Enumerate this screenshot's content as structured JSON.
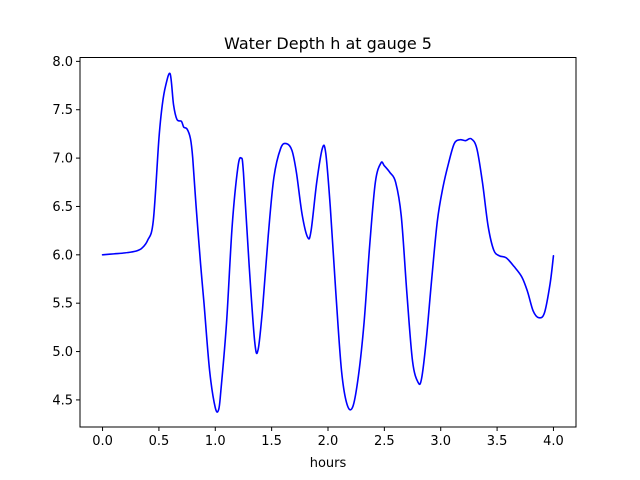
{
  "chart_data": {
    "type": "line",
    "title": "Water Depth h at gauge 5",
    "xlabel": "hours",
    "ylabel": "",
    "xlim": [
      -0.2,
      4.2
    ],
    "ylim": [
      4.22,
      8.04
    ],
    "grid": false,
    "legend": "none",
    "xticks": [
      0.0,
      0.5,
      1.0,
      1.5,
      2.0,
      2.5,
      3.0,
      3.5,
      4.0
    ],
    "xtick_labels": [
      "0.0",
      "0.5",
      "1.0",
      "1.5",
      "2.0",
      "2.5",
      "3.0",
      "3.5",
      "4.0"
    ],
    "yticks": [
      4.5,
      5.0,
      5.5,
      6.0,
      6.5,
      7.0,
      7.5,
      8.0
    ],
    "ytick_labels": [
      "4.5",
      "5.0",
      "5.5",
      "6.0",
      "6.5",
      "7.0",
      "7.5",
      "8.0"
    ],
    "series": [
      {
        "color": "#0000ff",
        "x": [
          0.0,
          0.1,
          0.2,
          0.3,
          0.35,
          0.4,
          0.45,
          0.5,
          0.53,
          0.56,
          0.6,
          0.63,
          0.66,
          0.7,
          0.72,
          0.75,
          0.78,
          0.8,
          0.83,
          0.87,
          0.9,
          0.95,
          1.0,
          1.03,
          1.05,
          1.1,
          1.15,
          1.2,
          1.23,
          1.25,
          1.3,
          1.35,
          1.38,
          1.42,
          1.47,
          1.52,
          1.58,
          1.63,
          1.68,
          1.72,
          1.77,
          1.82,
          1.85,
          1.9,
          1.95,
          1.98,
          2.02,
          2.07,
          2.12,
          2.17,
          2.22,
          2.27,
          2.32,
          2.37,
          2.42,
          2.47,
          2.5,
          2.55,
          2.6,
          2.65,
          2.7,
          2.75,
          2.8,
          2.83,
          2.87,
          2.92,
          2.97,
          3.02,
          3.07,
          3.12,
          3.17,
          3.22,
          3.27,
          3.32,
          3.37,
          3.42,
          3.47,
          3.52,
          3.58,
          3.65,
          3.72,
          3.77,
          3.82,
          3.87,
          3.92,
          3.97,
          4.0
        ],
        "y": [
          6.0,
          6.01,
          6.02,
          6.04,
          6.07,
          6.15,
          6.35,
          7.2,
          7.55,
          7.75,
          7.87,
          7.55,
          7.4,
          7.38,
          7.32,
          7.3,
          7.2,
          7.0,
          6.5,
          5.9,
          5.5,
          4.8,
          4.42,
          4.4,
          4.6,
          5.3,
          6.3,
          6.9,
          7.0,
          6.85,
          5.9,
          5.1,
          5.02,
          5.45,
          6.2,
          6.8,
          7.1,
          7.15,
          7.08,
          6.85,
          6.42,
          6.18,
          6.25,
          6.75,
          7.1,
          7.05,
          6.5,
          5.6,
          4.8,
          4.45,
          4.43,
          4.75,
          5.3,
          6.1,
          6.75,
          6.95,
          6.92,
          6.85,
          6.75,
          6.4,
          5.6,
          4.9,
          4.68,
          4.72,
          5.1,
          5.75,
          6.35,
          6.7,
          6.95,
          7.15,
          7.19,
          7.18,
          7.2,
          7.1,
          6.75,
          6.3,
          6.05,
          5.99,
          5.97,
          5.88,
          5.77,
          5.62,
          5.42,
          5.35,
          5.4,
          5.7,
          5.99
        ]
      }
    ]
  }
}
